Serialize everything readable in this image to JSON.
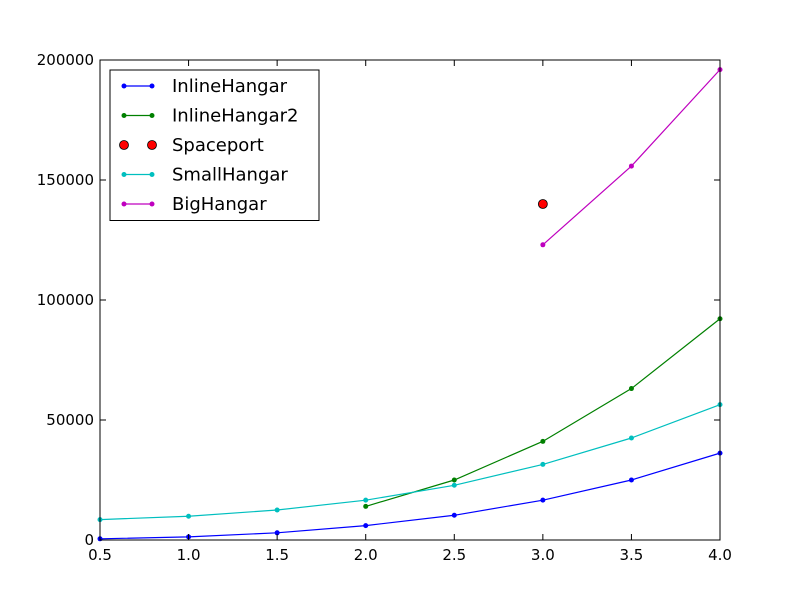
{
  "chart_data": {
    "type": "line",
    "title": "",
    "xlabel": "",
    "ylabel": "",
    "xlim": [
      0.5,
      4.0
    ],
    "ylim": [
      0,
      200000
    ],
    "xticks": [
      0.5,
      1.0,
      1.5,
      2.0,
      2.5,
      3.0,
      3.5,
      4.0
    ],
    "xtick_labels": [
      "0.5",
      "1.0",
      "1.5",
      "2.0",
      "2.5",
      "3.0",
      "3.5",
      "4.0"
    ],
    "yticks": [
      0,
      50000,
      100000,
      150000,
      200000
    ],
    "ytick_labels": [
      "0",
      "50000",
      "100000",
      "150000",
      "200000"
    ],
    "grid": false,
    "legend_position": "top-left",
    "series": [
      {
        "name": "InlineHangar",
        "color": "#0000ff",
        "style": "line-dot",
        "x": [
          0.5,
          1.0,
          1.5,
          2.0,
          2.5,
          3.0,
          3.5,
          4.0
        ],
        "y": [
          500,
          1300,
          3000,
          6000,
          10300,
          16600,
          25000,
          36200
        ]
      },
      {
        "name": "InlineHangar2",
        "color": "#008000",
        "style": "line-dot",
        "x": [
          2.0,
          2.5,
          3.0,
          3.5,
          4.0
        ],
        "y": [
          14000,
          25000,
          41100,
          63100,
          92200
        ]
      },
      {
        "name": "Spaceport",
        "color": "#ff0000",
        "style": "marker",
        "x": [
          3.0
        ],
        "y": [
          140000
        ]
      },
      {
        "name": "SmallHangar",
        "color": "#00bfbf",
        "style": "line-dot",
        "x": [
          0.5,
          1.0,
          1.5,
          2.0,
          2.5,
          3.0,
          3.5,
          4.0
        ],
        "y": [
          8500,
          9900,
          12500,
          16600,
          22800,
          31500,
          42500,
          56400
        ]
      },
      {
        "name": "BigHangar",
        "color": "#bf00bf",
        "style": "line-dot",
        "x": [
          3.0,
          3.5,
          4.0
        ],
        "y": [
          123000,
          155800,
          196000
        ]
      }
    ]
  }
}
